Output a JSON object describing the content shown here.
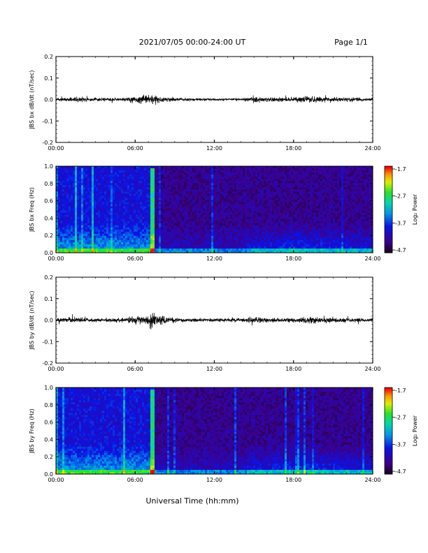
{
  "header": {
    "date_range": "2021/07/05  00:00-24:00 UT",
    "page": "Page 1/1"
  },
  "x_axis_title": "Universal Time (hh:mm)",
  "chart_data": [
    {
      "type": "line",
      "ylabel": "JBS bx dB/dt (nT/sec)",
      "xlim": [
        0,
        24
      ],
      "ylim": [
        -0.2,
        0.2
      ],
      "x_ticks": [
        "00:00",
        "06:00",
        "12:00",
        "18:00",
        "24:00"
      ],
      "y_ticks": [
        "0.2",
        "0.1",
        "0.0",
        "-0.1",
        "-0.2"
      ],
      "series": [
        {
          "envelope_hours": [
            0,
            1,
            1.8,
            3,
            5,
            7.2,
            7.6,
            8.2,
            9.5,
            12,
            14,
            15,
            15.6,
            17,
            18.5,
            19.5,
            21,
            23,
            24
          ],
          "envelope_amplitude": [
            0.012,
            0.015,
            0.02,
            0.012,
            0.01,
            0.04,
            0.03,
            0.018,
            0.01,
            0.008,
            0.009,
            0.022,
            0.016,
            0.018,
            0.02,
            0.024,
            0.018,
            0.014,
            0.012
          ]
        }
      ]
    },
    {
      "type": "heatmap",
      "ylabel": "JBS bx Freq (Hz)",
      "xlim": [
        0,
        24
      ],
      "ylim": [
        0.0,
        1.0
      ],
      "x_ticks": [
        "00:00",
        "06:00",
        "12:00",
        "18:00",
        "24:00"
      ],
      "y_ticks": [
        "1.0",
        "0.8",
        "0.6",
        "0.4",
        "0.2",
        "0.0"
      ],
      "colorbar": {
        "label": "Log₂ Power",
        "range": [
          -4.7,
          -1.7
        ],
        "ticks": [
          "-1.7",
          "-2.7",
          "-3.7",
          "-4.7"
        ]
      }
    },
    {
      "type": "line",
      "ylabel": "JBS by dB/dt (nT/sec)",
      "xlim": [
        0,
        24
      ],
      "ylim": [
        -0.2,
        0.2
      ],
      "x_ticks": [
        "00:00",
        "06:00",
        "12:00",
        "18:00",
        "24:00"
      ],
      "y_ticks": [
        "0.2",
        "0.1",
        "0.0",
        "-0.1",
        "-0.2"
      ],
      "series": [
        {
          "envelope_hours": [
            0,
            1,
            2,
            4,
            6.8,
            7.3,
            7.8,
            8.5,
            10,
            12,
            14,
            15.6,
            16.5,
            18,
            19.5,
            20.5,
            22,
            23.5,
            24
          ],
          "envelope_amplitude": [
            0.014,
            0.016,
            0.018,
            0.012,
            0.03,
            0.055,
            0.035,
            0.018,
            0.012,
            0.012,
            0.014,
            0.022,
            0.016,
            0.016,
            0.024,
            0.018,
            0.016,
            0.012,
            0.012
          ]
        }
      ]
    },
    {
      "type": "heatmap",
      "ylabel": "JBS by Freq (Hz)",
      "xlim": [
        0,
        24
      ],
      "ylim": [
        0.0,
        1.0
      ],
      "x_ticks": [
        "00:00",
        "06:00",
        "12:00",
        "18:00",
        "24:00"
      ],
      "y_ticks": [
        "1.0",
        "0.8",
        "0.6",
        "0.4",
        "0.2",
        "0.0"
      ],
      "colorbar": {
        "label": "Log₂ Power",
        "range": [
          -4.7,
          -1.7
        ],
        "ticks": [
          "-1.7",
          "-2.7",
          "-3.7",
          "-4.7"
        ]
      }
    }
  ]
}
